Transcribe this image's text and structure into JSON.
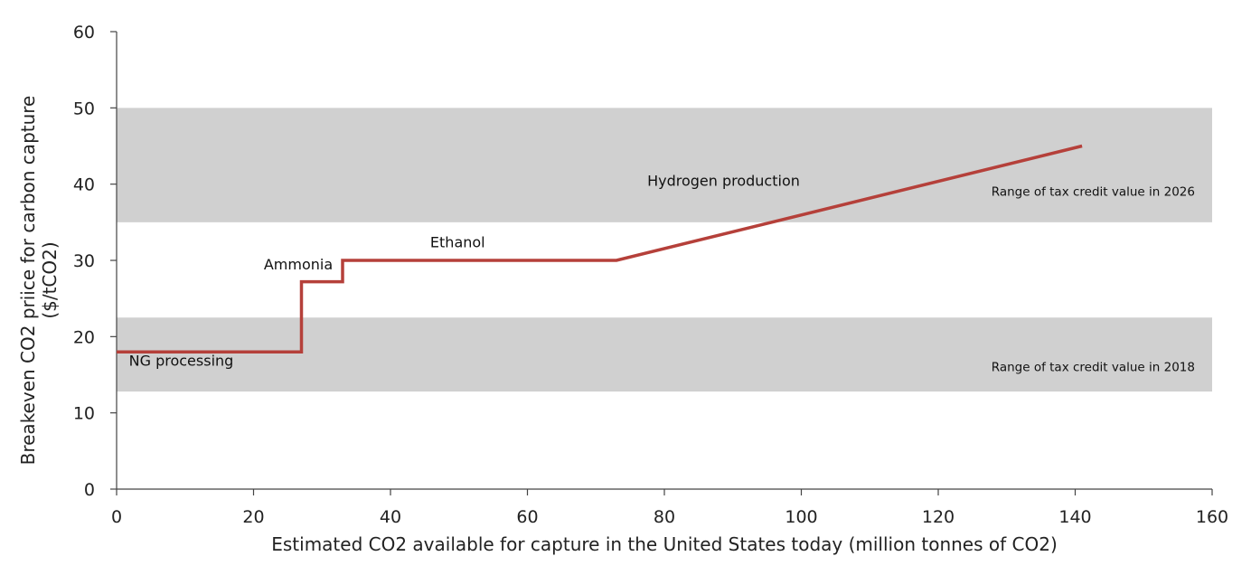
{
  "chart_data": {
    "type": "line",
    "xlabel": "Estimated CO2 available for capture in the United States today (million tonnes of CO2)",
    "ylabel_line1": "Breakeven CO2 priice for carbon capture",
    "ylabel_line2": "($/tCO2)",
    "xlim": [
      0,
      160
    ],
    "ylim": [
      0,
      60
    ],
    "x_ticks": [
      "0",
      "20",
      "40",
      "60",
      "80",
      "100",
      "120",
      "140",
      "160"
    ],
    "y_ticks": [
      "0",
      "10",
      "20",
      "30",
      "40",
      "50",
      "60"
    ],
    "grid": false,
    "series": [
      {
        "color": "#b5403a",
        "points": [
          [
            0,
            18
          ],
          [
            27,
            18
          ],
          [
            27,
            27.2
          ],
          [
            33,
            27.2
          ],
          [
            33,
            30
          ],
          [
            73,
            30
          ],
          [
            141,
            45
          ]
        ]
      }
    ],
    "bands": [
      {
        "y0": 12.8,
        "y1": 22.5,
        "color": "#d0d0d0",
        "label": "Range of tax credit value in 2018"
      },
      {
        "y0": 35,
        "y1": 50,
        "color": "#d0d0d0",
        "label": "Range of tax credit value in 2026"
      }
    ],
    "annotations": [
      {
        "text": "NG processing",
        "x": 1.8,
        "y": 16.2
      },
      {
        "text": "Ammonia",
        "x": 21.5,
        "y": 28.8
      },
      {
        "text": "Ethanol",
        "x": 45.8,
        "y": 31.7
      },
      {
        "text": "Hydrogen production",
        "x": 77.5,
        "y": 39.8
      }
    ]
  }
}
